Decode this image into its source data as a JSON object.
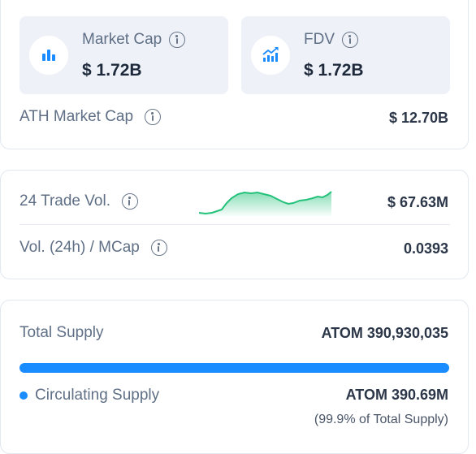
{
  "market_cap": {
    "label": "Market Cap",
    "value": "$ 1.72B",
    "icon": "bar-chart-icon"
  },
  "fdv": {
    "label": "FDV",
    "value": "$ 1.72B",
    "icon": "trend-up-chart-icon"
  },
  "ath_market_cap": {
    "label": "ATH Market Cap",
    "value": "$ 12.70B"
  },
  "trade_volume": {
    "label": "24 Trade Vol.",
    "value": "$ 67.63M"
  },
  "vol_mcap": {
    "label": "Vol. (24h) / MCap",
    "value": "0.0393"
  },
  "total_supply": {
    "label": "Total Supply",
    "value": "ATOM 390,930,035"
  },
  "circulating_supply": {
    "label": "Circulating Supply",
    "value": "ATOM 390.69M",
    "note": "(99.9% of Total Supply)",
    "fill_fraction": 0.999
  },
  "colors": {
    "accent": "#1a8cff",
    "sparkline": "#23c17a"
  }
}
